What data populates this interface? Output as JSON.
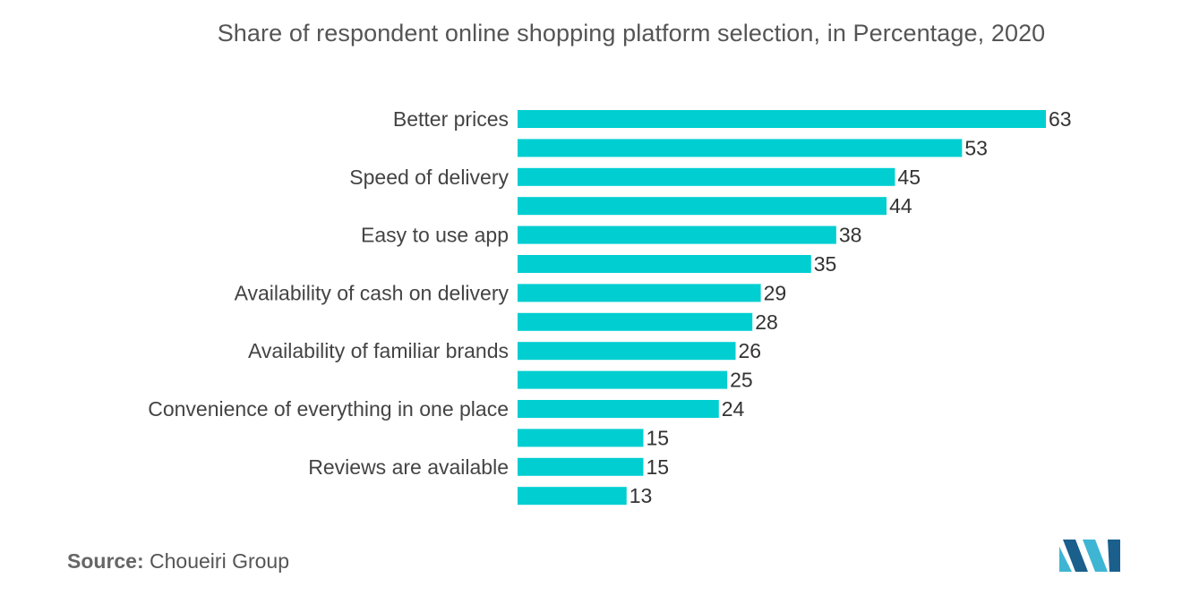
{
  "chart_data": {
    "type": "bar",
    "orientation": "horizontal",
    "title": "Share of respondent online shopping platform selection, in Percentage, 2020",
    "categories": [
      "Better prices",
      "",
      "Speed of delivery",
      "",
      "Easy to use app",
      "",
      "Availability of cash on delivery",
      "",
      "Availability of familiar brands",
      "",
      "Convenience of everything in one place",
      "",
      "Reviews are available",
      ""
    ],
    "values": [
      63,
      53,
      45,
      44,
      38,
      35,
      29,
      28,
      26,
      25,
      24,
      15,
      15,
      13
    ],
    "data_labels": true,
    "xlim": [
      0,
      63
    ],
    "grid": false,
    "legend": "none",
    "bar_color": "#00CED1"
  },
  "source": {
    "label": "Source:",
    "text": "Choueiri Group"
  },
  "logo": {
    "icon": "mordor-intelligence-logo",
    "colors": [
      "#3FB5D4",
      "#1B5F8C"
    ]
  }
}
